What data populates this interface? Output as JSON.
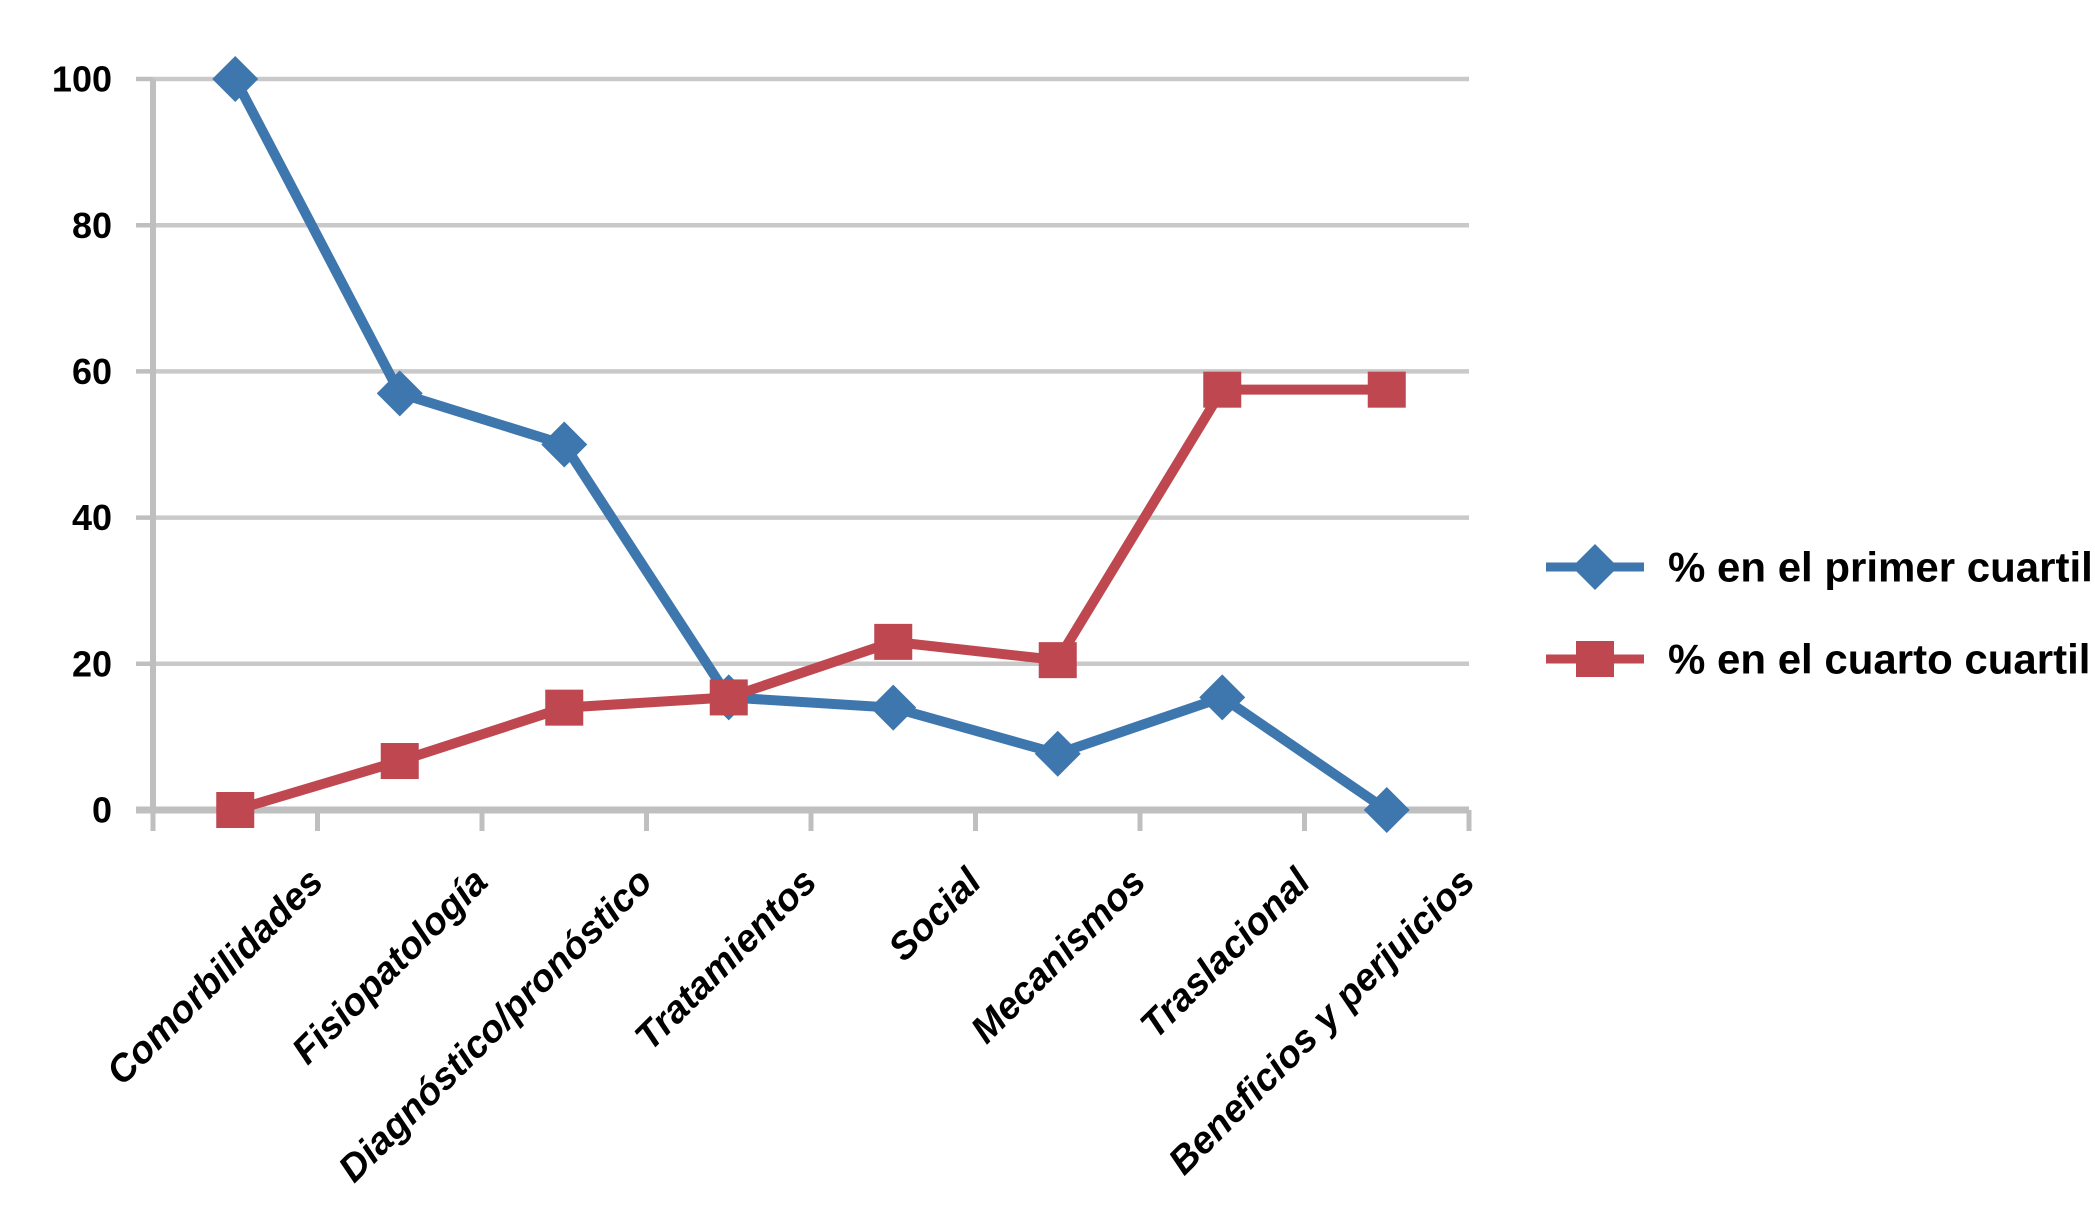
{
  "chart_data": {
    "type": "line",
    "title": "",
    "categories": [
      "Comorbilidades",
      "Fisiopatología",
      "Diagnóstico/pronóstico",
      "Tratamientos",
      "Social",
      "Mecanismos",
      "Traslacional",
      "Beneficios y perjuicios"
    ],
    "series": [
      {
        "name": "% en el primer cuartil",
        "marker": "diamond",
        "color": "#3E76AE",
        "values": [
          100,
          57,
          50,
          15.4,
          14,
          7.7,
          15.4,
          0
        ]
      },
      {
        "name": "% en el cuarto cuartil",
        "marker": "square",
        "color": "#BE4750",
        "values": [
          0,
          6.7,
          14,
          15.4,
          23,
          20.5,
          57.5,
          57.5
        ]
      }
    ],
    "xlabel": "",
    "ylabel": "",
    "ylim": [
      0,
      100
    ],
    "yticks": [
      0,
      20,
      40,
      60,
      80,
      100
    ],
    "grid": "horizontal",
    "legend_position": "right-middle",
    "colors": {
      "background": "#FFFFFF",
      "gridline": "#C9C9C9",
      "axis": "#BFBFBF",
      "text": "#000000"
    }
  }
}
